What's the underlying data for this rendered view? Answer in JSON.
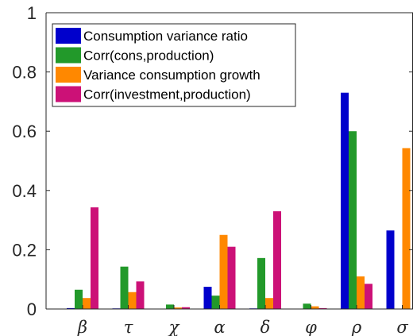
{
  "chart_data": {
    "type": "bar",
    "categories": [
      "β",
      "τ",
      "χ",
      "α",
      "δ",
      "φ",
      "ρ",
      "σ"
    ],
    "series": [
      {
        "name": "Consumption variance ratio",
        "color": "#0000cc",
        "values": [
          0.003,
          0.002,
          0.001,
          0.075,
          0.002,
          0.001,
          0.73,
          0.265
        ]
      },
      {
        "name": "Corr(cons,production)",
        "color": "#22992a",
        "values": [
          0.065,
          0.143,
          0.015,
          0.045,
          0.172,
          0.018,
          0.6,
          0.0
        ]
      },
      {
        "name": "Variance consumption growth",
        "color": "#ff8800",
        "values": [
          0.037,
          0.057,
          0.005,
          0.25,
          0.037,
          0.009,
          0.11,
          0.543
        ]
      },
      {
        "name": "Corr(investment,production)",
        "color": "#cc1177",
        "values": [
          0.343,
          0.093,
          0.006,
          0.21,
          0.33,
          0.003,
          0.085,
          0.0
        ]
      }
    ],
    "yticks": [
      "0",
      "0.2",
      "0.4",
      "0.6",
      "0.8",
      "1"
    ],
    "ylim": [
      0,
      1
    ],
    "grid": false,
    "legend_position": "top-left"
  }
}
